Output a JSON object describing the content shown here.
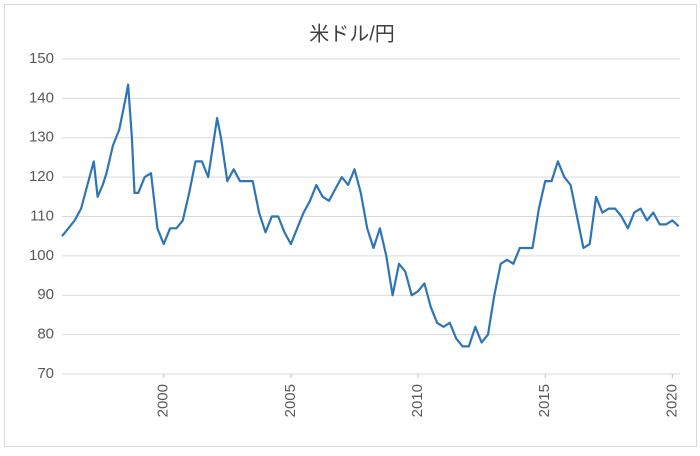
{
  "chart_data": {
    "type": "line",
    "title": "米ドル/円",
    "x": [
      1996.0,
      1996.25,
      1996.5,
      1996.75,
      1997.0,
      1997.25,
      1997.4,
      1997.6,
      1997.75,
      1998.0,
      1998.25,
      1998.5,
      1998.6,
      1998.75,
      1998.85,
      1999.0,
      1999.25,
      1999.5,
      1999.75,
      2000.0,
      2000.25,
      2000.5,
      2000.75,
      2001.0,
      2001.25,
      2001.5,
      2001.75,
      2002.1,
      2002.25,
      2002.5,
      2002.75,
      2003.0,
      2003.25,
      2003.5,
      2003.75,
      2004.0,
      2004.25,
      2004.5,
      2004.75,
      2005.0,
      2005.25,
      2005.5,
      2005.75,
      2006.0,
      2006.25,
      2006.5,
      2006.75,
      2007.0,
      2007.25,
      2007.5,
      2007.75,
      2008.0,
      2008.25,
      2008.5,
      2008.75,
      2009.0,
      2009.25,
      2009.5,
      2009.75,
      2010.0,
      2010.25,
      2010.5,
      2010.75,
      2011.0,
      2011.25,
      2011.5,
      2011.75,
      2012.0,
      2012.25,
      2012.5,
      2012.75,
      2013.0,
      2013.25,
      2013.5,
      2013.75,
      2014.0,
      2014.25,
      2014.5,
      2014.75,
      2015.0,
      2015.25,
      2015.5,
      2015.75,
      2016.0,
      2016.25,
      2016.5,
      2016.75,
      2017.0,
      2017.25,
      2017.5,
      2017.75,
      2018.0,
      2018.25,
      2018.5,
      2018.75,
      2019.0,
      2019.25,
      2019.5,
      2019.75,
      2020.0,
      2020.25
    ],
    "series": [
      {
        "name": "米ドル/円",
        "color": "#2e75b6",
        "values": [
          105,
          107,
          109,
          112,
          118,
          124,
          115,
          118,
          121,
          128,
          132,
          140,
          143.5,
          130,
          116,
          116,
          120,
          121,
          107,
          103,
          107,
          107,
          109,
          116,
          124,
          124,
          120,
          135,
          130,
          119,
          122,
          119,
          119,
          119,
          111,
          106,
          110,
          110,
          106,
          103,
          107,
          111,
          114,
          118,
          115,
          114,
          117,
          120,
          118,
          122,
          116,
          107,
          102,
          107,
          100,
          90,
          98,
          96,
          90,
          91,
          93,
          87,
          83,
          82,
          83,
          79,
          77,
          77,
          82,
          78,
          80,
          90,
          98,
          99,
          98,
          102,
          102,
          102,
          112,
          119,
          119,
          124,
          120,
          118,
          110,
          102,
          103,
          115,
          111,
          112,
          112,
          110,
          107,
          111,
          112,
          109,
          111,
          108,
          108,
          109,
          107.5
        ]
      }
    ],
    "xlim": [
      1996,
      2020.3
    ],
    "xticks": [
      2000,
      2005,
      2010,
      2015,
      2020
    ],
    "ylim": [
      70,
      150
    ],
    "yticks": [
      70,
      80,
      90,
      100,
      110,
      120,
      130,
      140,
      150
    ],
    "grid": true
  }
}
